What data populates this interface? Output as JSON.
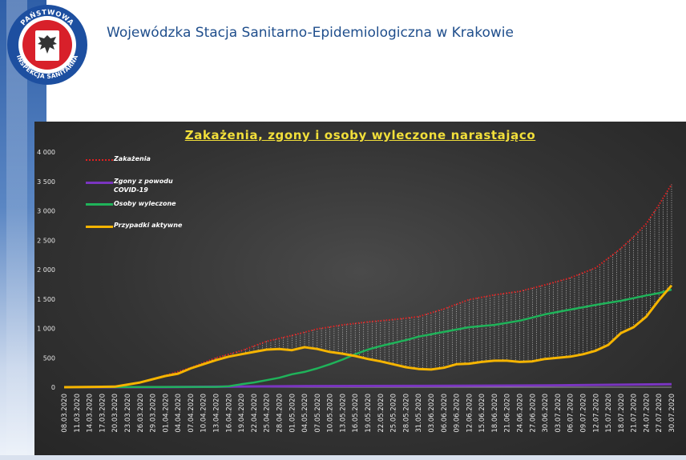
{
  "header": {
    "title": "Wojewódzka Stacja Sanitarno-Epidemiologiczna w Krakowie",
    "logo_text": "PAŃSTWOWA INSPEKCJA SANITARNA"
  },
  "colors": {
    "zakazenia": "#e02020",
    "zgony": "#7a35c0",
    "wyleczone": "#1fb35a",
    "aktywne": "#f5b400",
    "title": "#f2df3a"
  },
  "chart_data": {
    "type": "line",
    "title": "Zakażenia, zgony i osoby wyleczone narastająco",
    "xlabel": "",
    "ylabel": "",
    "ylim": [
      0,
      4000
    ],
    "yticks": [
      "0",
      "500",
      "1 000",
      "1 500",
      "2 000",
      "2 500",
      "3 000",
      "3 500",
      "4 000"
    ],
    "x_start": "08.03.2020",
    "x_end": "30.07.2020",
    "x_tick_labels": [
      "08.03.2020",
      "11.03.2020",
      "14.03.2020",
      "17.03.2020",
      "20.03.2020",
      "23.03.2020",
      "26.03.2020",
      "29.03.2020",
      "01.04.2020",
      "04.04.2020",
      "07.04.2020",
      "10.04.2020",
      "13.04.2020",
      "16.04.2020",
      "19.04.2020",
      "22.04.2020",
      "25.04.2020",
      "28.04.2020",
      "01.05.2020",
      "04.05.2020",
      "07.05.2020",
      "10.05.2020",
      "13.05.2020",
      "16.05.2020",
      "19.05.2020",
      "22.05.2020",
      "25.05.2020",
      "28.05.2020",
      "31.05.2020",
      "03.06.2020",
      "06.06.2020",
      "09.06.2020",
      "12.06.2020",
      "15.06.2020",
      "18.06.2020",
      "21.06.2020",
      "24.06.2020",
      "27.06.2020",
      "30.06.2020",
      "03.07.2020",
      "06.07.2020",
      "09.07.2020",
      "12.07.2020",
      "15.07.2020",
      "18.07.2020",
      "21.07.2020",
      "24.07.2020",
      "27.07.2020",
      "30.07.2020"
    ],
    "grid": false,
    "legend_position": "top-left",
    "series": [
      {
        "name": "Zakażenia",
        "style": "dotted",
        "points": [
          [
            "08.03.2020",
            0
          ],
          [
            "20.03.2020",
            10
          ],
          [
            "26.03.2020",
            80
          ],
          [
            "01.04.2020",
            200
          ],
          [
            "07.04.2020",
            330
          ],
          [
            "13.04.2020",
            500
          ],
          [
            "19.04.2020",
            620
          ],
          [
            "25.04.2020",
            780
          ],
          [
            "01.05.2020",
            880
          ],
          [
            "07.05.2020",
            990
          ],
          [
            "13.05.2020",
            1060
          ],
          [
            "19.05.2020",
            1110
          ],
          [
            "25.05.2020",
            1150
          ],
          [
            "31.05.2020",
            1200
          ],
          [
            "06.06.2020",
            1330
          ],
          [
            "12.06.2020",
            1490
          ],
          [
            "18.06.2020",
            1570
          ],
          [
            "24.06.2020",
            1630
          ],
          [
            "30.06.2020",
            1740
          ],
          [
            "06.07.2020",
            1860
          ],
          [
            "12.07.2020",
            2030
          ],
          [
            "18.07.2020",
            2360
          ],
          [
            "21.07.2020",
            2560
          ],
          [
            "24.07.2020",
            2780
          ],
          [
            "27.07.2020",
            3100
          ],
          [
            "30.07.2020",
            3450
          ]
        ]
      },
      {
        "name": "Zgony z powodu COVID-19",
        "style": "solid",
        "points": [
          [
            "08.03.2020",
            0
          ],
          [
            "01.04.2020",
            2
          ],
          [
            "16.04.2020",
            10
          ],
          [
            "01.05.2020",
            18
          ],
          [
            "01.06.2020",
            22
          ],
          [
            "01.07.2020",
            30
          ],
          [
            "30.07.2020",
            50
          ]
        ]
      },
      {
        "name": "Osoby wyleczone",
        "style": "solid",
        "points": [
          [
            "08.03.2020",
            0
          ],
          [
            "13.04.2020",
            5
          ],
          [
            "16.04.2020",
            15
          ],
          [
            "19.04.2020",
            50
          ],
          [
            "22.04.2020",
            80
          ],
          [
            "25.04.2020",
            120
          ],
          [
            "28.04.2020",
            160
          ],
          [
            "01.05.2020",
            220
          ],
          [
            "04.05.2020",
            260
          ],
          [
            "07.05.2020",
            320
          ],
          [
            "10.05.2020",
            390
          ],
          [
            "13.05.2020",
            470
          ],
          [
            "16.05.2020",
            560
          ],
          [
            "19.05.2020",
            640
          ],
          [
            "22.05.2020",
            700
          ],
          [
            "25.05.2020",
            750
          ],
          [
            "28.05.2020",
            800
          ],
          [
            "31.05.2020",
            860
          ],
          [
            "06.06.2020",
            940
          ],
          [
            "12.06.2020",
            1020
          ],
          [
            "18.06.2020",
            1060
          ],
          [
            "24.06.2020",
            1130
          ],
          [
            "30.06.2020",
            1240
          ],
          [
            "06.07.2020",
            1320
          ],
          [
            "12.07.2020",
            1400
          ],
          [
            "18.07.2020",
            1470
          ],
          [
            "24.07.2020",
            1560
          ],
          [
            "27.07.2020",
            1600
          ],
          [
            "30.07.2020",
            1660
          ]
        ]
      },
      {
        "name": "Przypadki aktywne",
        "style": "solid",
        "points": [
          [
            "08.03.2020",
            0
          ],
          [
            "20.03.2020",
            10
          ],
          [
            "26.03.2020",
            80
          ],
          [
            "01.04.2020",
            190
          ],
          [
            "04.04.2020",
            230
          ],
          [
            "07.04.2020",
            320
          ],
          [
            "10.04.2020",
            390
          ],
          [
            "13.04.2020",
            460
          ],
          [
            "16.04.2020",
            520
          ],
          [
            "19.04.2020",
            560
          ],
          [
            "22.04.2020",
            600
          ],
          [
            "25.04.2020",
            640
          ],
          [
            "28.04.2020",
            650
          ],
          [
            "01.05.2020",
            630
          ],
          [
            "04.05.2020",
            680
          ],
          [
            "07.05.2020",
            650
          ],
          [
            "10.05.2020",
            600
          ],
          [
            "13.05.2020",
            570
          ],
          [
            "16.05.2020",
            530
          ],
          [
            "19.05.2020",
            480
          ],
          [
            "22.05.2020",
            440
          ],
          [
            "25.05.2020",
            390
          ],
          [
            "28.05.2020",
            340
          ],
          [
            "31.05.2020",
            310
          ],
          [
            "03.06.2020",
            300
          ],
          [
            "06.06.2020",
            330
          ],
          [
            "09.06.2020",
            390
          ],
          [
            "12.06.2020",
            400
          ],
          [
            "15.06.2020",
            430
          ],
          [
            "18.06.2020",
            450
          ],
          [
            "21.06.2020",
            450
          ],
          [
            "24.06.2020",
            430
          ],
          [
            "27.06.2020",
            440
          ],
          [
            "30.06.2020",
            480
          ],
          [
            "03.07.2020",
            500
          ],
          [
            "06.07.2020",
            520
          ],
          [
            "09.07.2020",
            560
          ],
          [
            "12.07.2020",
            620
          ],
          [
            "15.07.2020",
            720
          ],
          [
            "18.07.2020",
            920
          ],
          [
            "21.07.2020",
            1020
          ],
          [
            "24.07.2020",
            1200
          ],
          [
            "27.07.2020",
            1480
          ],
          [
            "30.07.2020",
            1730
          ]
        ]
      }
    ]
  }
}
